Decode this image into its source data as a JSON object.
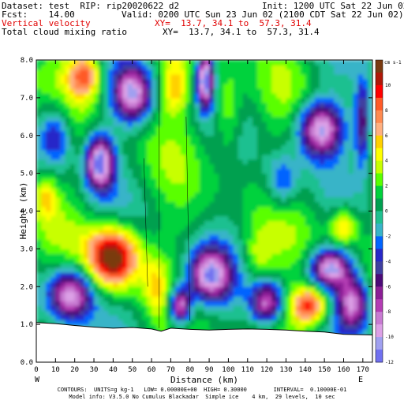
{
  "header": {
    "dataset": "Dataset: test  RIP: rip20020622 d2",
    "init": "Init: 1200 UTC Sat 22 Jun 02",
    "fcst": "Fcst:    14.00",
    "valid": "Valid: 0200 UTC Sun 23 Jun 02 (2100 CDT Sat 22 Jun 02)",
    "field1": "Vertical velocity",
    "xy1": "XY=  13.7, 34.1 to  57.3, 31.4",
    "field2": "Total cloud mixing ratio",
    "xy2": "XY=  13.7, 34.1 to  57.3, 31.4"
  },
  "footer": {
    "line1": "CONTOURS:  UNITS=g kg-1   LOW= 0.00000E+00  HIGH= 0.30000        INTERVAL=  0.10000E-01",
    "line2": "Model info: V3.5.0 No Cumulus Blackadar  Simple ice    4 km,  29 levels,  10 sec"
  },
  "colorbar": {
    "unit": "cm s-1",
    "labels": [
      "10",
      "8",
      "6",
      "4",
      "2",
      "0",
      "-2",
      "-4",
      "-6",
      "-8",
      "-10",
      "-12"
    ],
    "colors": [
      "#7a3a10",
      "#b01808",
      "#ff0000",
      "#ff5a28",
      "#ff8a50",
      "#ffb080",
      "#ffd000",
      "#ffff00",
      "#c8ff00",
      "#5aff00",
      "#00d23c",
      "#00a050",
      "#1fc090",
      "#37b4c8",
      "#0064ff",
      "#2828c8",
      "#4040a0",
      "#4c0a78",
      "#8c1e96",
      "#b43cb4",
      "#c87ad2",
      "#dca0e6",
      "#a0a0f0",
      "#7070f0"
    ]
  },
  "chart_data": {
    "type": "heatmap",
    "xlabel": "Distance (km)",
    "ylabel": "Height (km)",
    "xlim": [
      0,
      175
    ],
    "ylim": [
      0,
      8
    ],
    "xticks": [
      0,
      10,
      20,
      30,
      40,
      50,
      60,
      70,
      80,
      90,
      100,
      110,
      120,
      130,
      140,
      150,
      160,
      170
    ],
    "yticks": [
      0.0,
      1.0,
      2.0,
      3.0,
      4.0,
      5.0,
      6.0,
      7.0,
      8.0
    ],
    "left_label": "W",
    "right_label": "E",
    "colorbar_range": [
      -14,
      12
    ],
    "terrain": [
      [
        0,
        1.05
      ],
      [
        10,
        1.02
      ],
      [
        20,
        0.97
      ],
      [
        30,
        0.93
      ],
      [
        40,
        0.9
      ],
      [
        50,
        0.92
      ],
      [
        60,
        0.88
      ],
      [
        65,
        0.82
      ],
      [
        70,
        0.9
      ],
      [
        80,
        0.87
      ],
      [
        90,
        0.85
      ],
      [
        100,
        0.87
      ],
      [
        110,
        0.88
      ],
      [
        120,
        0.87
      ],
      [
        130,
        0.85
      ],
      [
        140,
        0.82
      ],
      [
        150,
        0.8
      ],
      [
        160,
        0.74
      ],
      [
        175,
        0.72
      ]
    ],
    "features": [
      {
        "x": 40,
        "y": 2.8,
        "sx": 9,
        "sy": 0.55,
        "a": 13
      },
      {
        "x": 25,
        "y": 7.6,
        "sx": 6,
        "sy": 0.4,
        "a": 8
      },
      {
        "x": 5,
        "y": 4.4,
        "sx": 4,
        "sy": 0.45,
        "a": 4
      },
      {
        "x": 142,
        "y": 1.5,
        "sx": 7,
        "sy": 0.35,
        "a": 10
      },
      {
        "x": 72,
        "y": 7.3,
        "sx": 5,
        "sy": 0.5,
        "a": 5
      },
      {
        "x": 100,
        "y": 6.6,
        "sx": 5,
        "sy": 0.8,
        "a": 4
      },
      {
        "x": 160,
        "y": 3.6,
        "sx": 5,
        "sy": 0.35,
        "a": 6
      },
      {
        "x": 115,
        "y": 2.8,
        "sx": 6,
        "sy": 0.5,
        "a": 3
      },
      {
        "x": 62,
        "y": 2.0,
        "sx": 4,
        "sy": 0.5,
        "a": 3
      },
      {
        "x": 33,
        "y": 5.3,
        "sx": 5,
        "sy": 0.5,
        "a": -13
      },
      {
        "x": 50,
        "y": 7.1,
        "sx": 7,
        "sy": 0.5,
        "a": -11
      },
      {
        "x": 88,
        "y": 7.5,
        "sx": 3,
        "sy": 0.5,
        "a": -14
      },
      {
        "x": 148,
        "y": 6.2,
        "sx": 8,
        "sy": 0.5,
        "a": -12
      },
      {
        "x": 153,
        "y": 2.5,
        "sx": 7,
        "sy": 0.35,
        "a": -12
      },
      {
        "x": 90,
        "y": 2.3,
        "sx": 8,
        "sy": 0.5,
        "a": -12
      },
      {
        "x": 75,
        "y": 1.5,
        "sx": 4,
        "sy": 0.35,
        "a": -12
      },
      {
        "x": 18,
        "y": 1.8,
        "sx": 8,
        "sy": 0.5,
        "a": -12
      },
      {
        "x": 120,
        "y": 1.6,
        "sx": 6,
        "sy": 0.4,
        "a": -10
      },
      {
        "x": 165,
        "y": 1.6,
        "sx": 6,
        "sy": 0.5,
        "a": -10
      },
      {
        "x": 10,
        "y": 6.0,
        "sx": 6,
        "sy": 0.6,
        "a": -6
      },
      {
        "x": 128,
        "y": 4.8,
        "sx": 6,
        "sy": 0.5,
        "a": -5
      },
      {
        "x": 170,
        "y": 6.3,
        "sx": 3,
        "sy": 0.8,
        "a": -8
      }
    ]
  }
}
